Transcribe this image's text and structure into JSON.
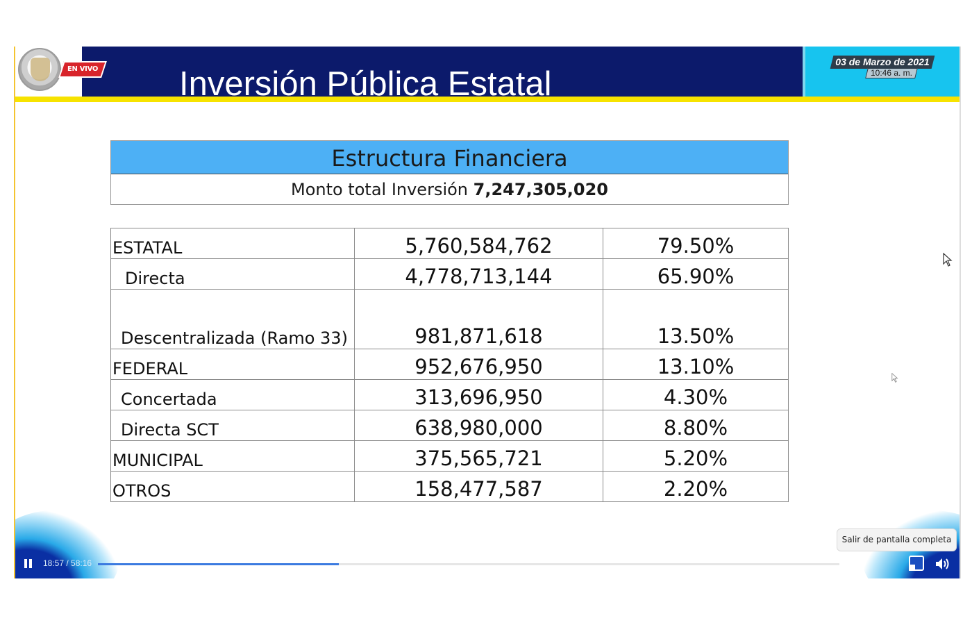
{
  "header": {
    "live_badge": "EN VIVO",
    "title": "Inversión Pública Estatal",
    "date": "03 de Marzo de 2021",
    "time": "10:46 a. m."
  },
  "summary": {
    "heading": "Estructura Financiera",
    "total_label": "Monto total Inversión",
    "total_value": "7,247,305,020"
  },
  "table": {
    "rows": [
      {
        "label": "ESTATAL",
        "amount": "5,760,584,762",
        "percent": "79.50%"
      },
      {
        "label": "Directa",
        "amount": "4,778,713,144",
        "percent": "65.90%"
      },
      {
        "label": "Descentralizada (Ramo 33)",
        "amount": "981,871,618",
        "percent": "13.50%"
      },
      {
        "label": "FEDERAL",
        "amount": "952,676,950",
        "percent": "13.10%"
      },
      {
        "label": "Concertada",
        "amount": "313,696,950",
        "percent": "4.30%"
      },
      {
        "label": "Directa SCT",
        "amount": "638,980,000",
        "percent": "8.80%"
      },
      {
        "label": "MUNICIPAL",
        "amount": "375,565,721",
        "percent": "5.20%"
      },
      {
        "label": "OTROS",
        "amount": "158,477,587",
        "percent": "2.20%"
      }
    ]
  },
  "player": {
    "time_display": "18:57 / 58:16",
    "progress_fraction": 0.325,
    "exit_fullscreen_tooltip": "Salir de pantalla completa",
    "accent_color": "#3c7be0"
  },
  "colors": {
    "header_navy": "#0c1a6b",
    "header_cyan": "#17c4ef",
    "header_yellow": "#f7e300",
    "table_header_blue": "#4db0f5",
    "live_red": "#d8232a"
  }
}
